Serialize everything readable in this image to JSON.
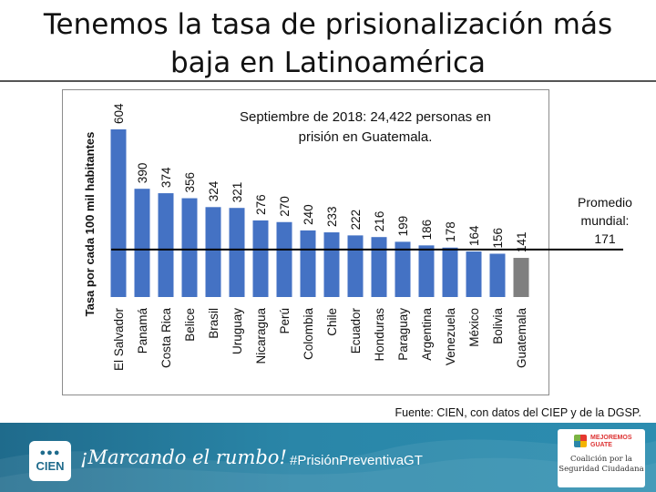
{
  "slide": {
    "title_line1": "Tenemos la tasa de prisionalización más",
    "title_line2": "baja en Latinoamérica",
    "annotation_line1": "Septiembre de 2018: 24,422 personas en",
    "annotation_line2": "prisión en Guatemala.",
    "average_line1": "Promedio",
    "average_line2": "mundial:",
    "average_line3": "171",
    "source": "Fuente: CIEN, con datos del CIEP y de la DGSP."
  },
  "footer": {
    "logo_text": "CIEN",
    "slogan": "¡Marcando el rumbo!",
    "hashtag": "#PrisiónPreventivaGT",
    "partner_tag_line1": "MEJOREMOS",
    "partner_tag_line2": "GUATE",
    "partner_name_line1": "Coalición por la",
    "partner_name_line2": "Seguridad Ciudadana"
  },
  "colors": {
    "bar": "#4472c4",
    "highlight": "#7f7f7f",
    "average_line": "#000000"
  },
  "chart_data": {
    "type": "bar",
    "title": "Tenemos la tasa de prisionalización más baja en Latinoamérica",
    "xlabel": "",
    "ylabel": "Tasa por cada 100 mil habitantes",
    "ylim": [
      0,
      620
    ],
    "grid": false,
    "categories": [
      "El Salvador",
      "Panamá",
      "Costa Rica",
      "Belice",
      "Brasil",
      "Uruguay",
      "Nicaragua",
      "Perú",
      "Colombia",
      "Chile",
      "Ecuador",
      "Honduras",
      "Paraguay",
      "Argentina",
      "Venezuela",
      "México",
      "Bolivia",
      "Guatemala"
    ],
    "values": [
      604,
      390,
      374,
      356,
      324,
      321,
      276,
      270,
      240,
      233,
      222,
      216,
      199,
      186,
      178,
      164,
      156,
      141
    ],
    "highlight_category": "Guatemala",
    "reference_line": {
      "value": 171,
      "label": "Promedio mundial: 171"
    }
  }
}
